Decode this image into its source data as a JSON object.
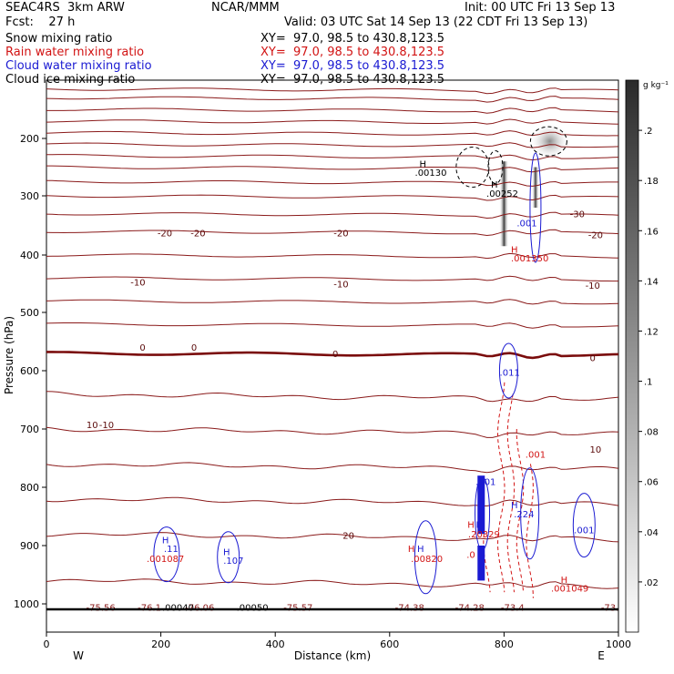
{
  "header": {
    "line1_left": "SEAC4RS  3km ARW",
    "line1_center": "NCAR/MMM",
    "line1_right": "Init: 00 UTC Fri 13 Sep 13",
    "line2_left": "Fcst:    27 h",
    "line2_right": "Valid: 03 UTC Sat 14 Sep 13 (22 CDT Fri 13 Sep 13)"
  },
  "legend_rows": [
    {
      "name": "Snow mixing ratio",
      "xy": "XY=  97.0, 98.5 to 430.8,123.5",
      "color": "#000000"
    },
    {
      "name": "Rain water mixing ratio",
      "xy": "XY=  97.0, 98.5 to 430.8,123.5",
      "color": "#d21414"
    },
    {
      "name": "Cloud water mixing ratio",
      "xy": "XY=  97.0, 98.5 to 430.8,123.5",
      "color": "#1a1ad2"
    },
    {
      "name": "Cloud ice mixing ratio",
      "xy": "XY=  97.0, 98.5 to 430.8,123.5",
      "color": "#000000"
    }
  ],
  "chart_data": {
    "type": "contour",
    "xlabel": "Distance (km)",
    "ylabel": "Pressure (hPa)",
    "xlim": [
      0,
      1000
    ],
    "ylim": [
      1050,
      100
    ],
    "x_ticks": [
      0,
      200,
      400,
      600,
      800,
      1000
    ],
    "y_ticks": [
      200,
      300,
      400,
      500,
      600,
      700,
      800,
      900,
      1000
    ],
    "left_end_label": "W",
    "right_end_label": "E",
    "colorbar": {
      "unit_label": "g kg⁻¹",
      "ticks": [
        ".2",
        ".18",
        ".16",
        ".14",
        ".12",
        ".1",
        ".08",
        ".06",
        ".04",
        ".02"
      ],
      "tick_values": [
        0.2,
        0.18,
        0.16,
        0.14,
        0.12,
        0.1,
        0.08,
        0.06,
        0.04,
        0.02
      ],
      "range": [
        0,
        0.22
      ]
    },
    "temperature_labels": [
      {
        "x": 95,
        "p": 1006,
        "text": "-75.56"
      },
      {
        "x": 180,
        "p": 1006,
        "text": "-76.1"
      },
      {
        "x": 268,
        "p": 1006,
        "text": "-76.06"
      },
      {
        "x": 440,
        "p": 1006,
        "text": "-75.57"
      },
      {
        "x": 635,
        "p": 1006,
        "text": "-74.38"
      },
      {
        "x": 740,
        "p": 1006,
        "text": "-74.28"
      },
      {
        "x": 815,
        "p": 1006,
        "text": "-73.4"
      },
      {
        "x": 985,
        "p": 1006,
        "text": "-73."
      }
    ],
    "top_ice_labels": [
      {
        "x": 230,
        "p": 1006,
        "text": ".00040"
      },
      {
        "x": 360,
        "p": 1006,
        "text": ".00050"
      }
    ],
    "isotherm_labels": [
      {
        "x": 207,
        "p": 362,
        "text": "-20"
      },
      {
        "x": 265,
        "p": 362,
        "text": "-20"
      },
      {
        "x": 515,
        "p": 362,
        "text": "-20"
      },
      {
        "x": 960,
        "p": 365,
        "text": "-20"
      },
      {
        "x": 928,
        "p": 330,
        "text": "-30"
      },
      {
        "x": 160,
        "p": 447,
        "text": "-10"
      },
      {
        "x": 515,
        "p": 450,
        "text": "-10"
      },
      {
        "x": 955,
        "p": 452,
        "text": "-10"
      },
      {
        "x": 168,
        "p": 559,
        "text": "0"
      },
      {
        "x": 258,
        "p": 559,
        "text": "0"
      },
      {
        "x": 505,
        "p": 570,
        "text": "0"
      },
      {
        "x": 955,
        "p": 577,
        "text": "0"
      },
      {
        "x": 80,
        "p": 692,
        "text": "10"
      },
      {
        "x": 105,
        "p": 692,
        "text": "-10"
      },
      {
        "x": 960,
        "p": 734,
        "text": "10"
      },
      {
        "x": 528,
        "p": 882,
        "text": "20"
      }
    ],
    "maxima_labels": [
      {
        "x": 658,
        "p": 244,
        "text": "H",
        "color": "#000000"
      },
      {
        "x": 672,
        "p": 259,
        "text": ".00130",
        "color": "#000000"
      },
      {
        "x": 783,
        "p": 279,
        "text": "H",
        "color": "#000000"
      },
      {
        "x": 797,
        "p": 295,
        "text": ".00252",
        "color": "#000000"
      },
      {
        "x": 840,
        "p": 345,
        "text": ".001",
        "color": "#1a1ad2"
      },
      {
        "x": 818,
        "p": 390,
        "text": "H",
        "color": "#d21414"
      },
      {
        "x": 845,
        "p": 405,
        "text": ".001350",
        "color": "#d21414"
      },
      {
        "x": 810,
        "p": 602,
        "text": ".011",
        "color": "#1a1ad2"
      },
      {
        "x": 855,
        "p": 743,
        "text": ".001",
        "color": "#d21414"
      },
      {
        "x": 768,
        "p": 790,
        "text": ".001",
        "color": "#1a1ad2"
      },
      {
        "x": 818,
        "p": 830,
        "text": "H",
        "color": "#1a1ad2"
      },
      {
        "x": 835,
        "p": 845,
        "text": ".224",
        "color": "#1a1ad2"
      },
      {
        "x": 742,
        "p": 863,
        "text": "H",
        "color": "#d21414"
      },
      {
        "x": 757,
        "p": 863,
        "text": "H",
        "color": "#1a1ad2"
      },
      {
        "x": 765,
        "p": 880,
        "text": ".20329",
        "color": "#d21414"
      },
      {
        "x": 940,
        "p": 873,
        "text": ".001",
        "color": "#1a1ad2"
      },
      {
        "x": 208,
        "p": 890,
        "text": "H",
        "color": "#1a1ad2"
      },
      {
        "x": 218,
        "p": 905,
        "text": ".11",
        "color": "#1a1ad2"
      },
      {
        "x": 208,
        "p": 922,
        "text": ".001087",
        "color": "#d21414"
      },
      {
        "x": 315,
        "p": 910,
        "text": "H",
        "color": "#1a1ad2"
      },
      {
        "x": 327,
        "p": 925,
        "text": ".107",
        "color": "#1a1ad2"
      },
      {
        "x": 638,
        "p": 905,
        "text": "H",
        "color": "#d21414"
      },
      {
        "x": 654,
        "p": 905,
        "text": "H",
        "color": "#1a1ad2"
      },
      {
        "x": 665,
        "p": 922,
        "text": ".00820",
        "color": "#d21414"
      },
      {
        "x": 742,
        "p": 915,
        "text": ".0",
        "color": "#d21414"
      },
      {
        "x": 905,
        "p": 958,
        "text": "H",
        "color": "#d21414"
      },
      {
        "x": 915,
        "p": 973,
        "text": ".001049",
        "color": "#d21414"
      }
    ]
  }
}
